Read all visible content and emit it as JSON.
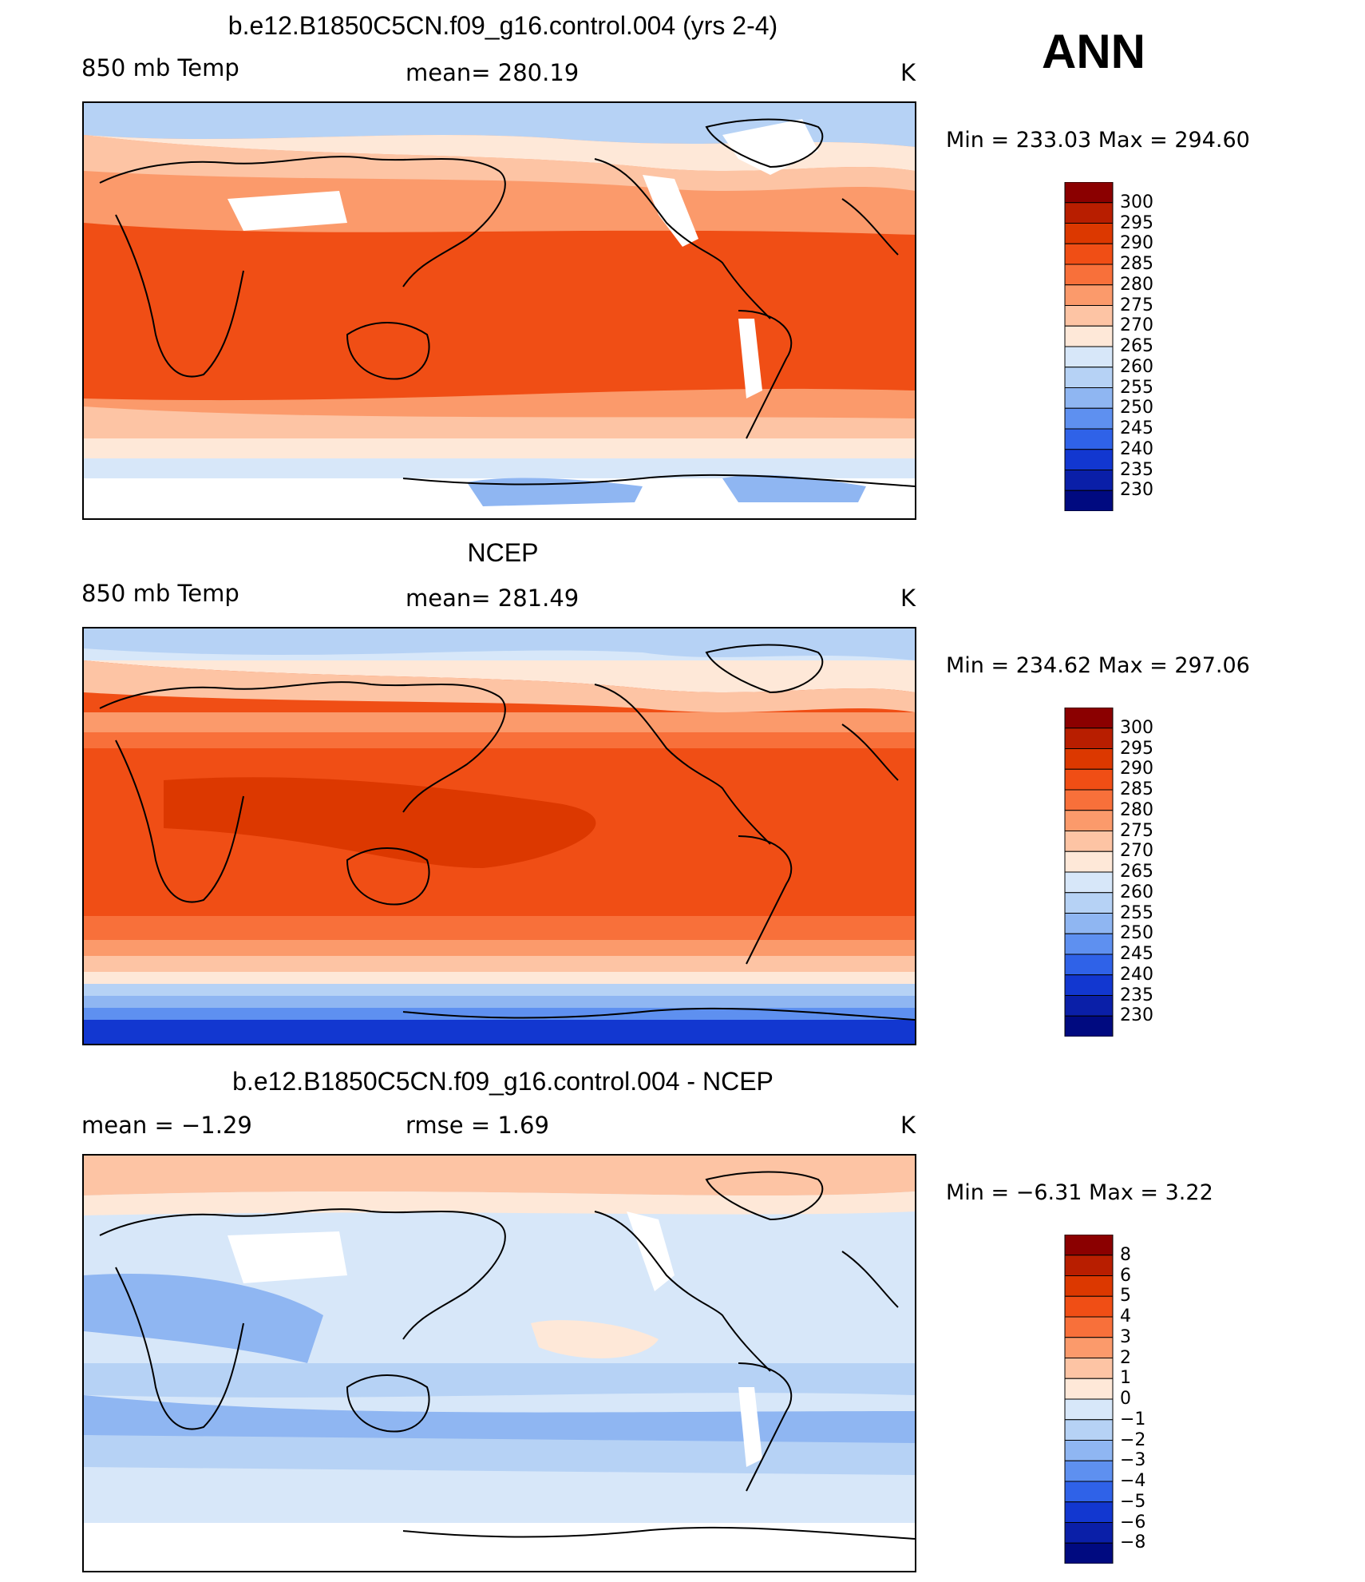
{
  "season": "ANN",
  "panels": [
    {
      "title": "b.e12.B1850C5CN.f09_g16.control.004 (yrs 2-4)",
      "variable": "850 mb Temp",
      "stat": "mean=  280.19",
      "units": "K",
      "minmax": "Min  =  233.03  Max  =  294.60"
    },
    {
      "title": "NCEP",
      "variable": "850 mb Temp",
      "stat": "mean=  281.49",
      "units": "K",
      "minmax": "Min  =  234.62  Max  =  297.06"
    },
    {
      "title": "b.e12.B1850C5CN.f09_g16.control.004 - NCEP",
      "variable": "mean  =    −1.29",
      "stat": "rmse  =     1.69",
      "units": "K",
      "minmax": "Min  =    −6.31  Max  =     3.22"
    }
  ],
  "colorbars": {
    "temp": {
      "labels": [
        "300",
        "295",
        "290",
        "285",
        "280",
        "275",
        "270",
        "265",
        "260",
        "255",
        "250",
        "245",
        "240",
        "235",
        "230"
      ],
      "colors": [
        "#8b0000",
        "#b81e00",
        "#dc3800",
        "#f04e15",
        "#f8703a",
        "#fb9a6b",
        "#fdc4a4",
        "#fee8d8",
        "#d7e7f9",
        "#b6d2f5",
        "#8fb6f2",
        "#5e90f0",
        "#2f62e8",
        "#1237d0",
        "#0a1fa8",
        "#000a80"
      ]
    },
    "diff": {
      "labels": [
        "8",
        "6",
        "5",
        "4",
        "3",
        "2",
        "1",
        "0",
        "−1",
        "−2",
        "−3",
        "−4",
        "−5",
        "−6",
        "−8"
      ],
      "colors": [
        "#8b0000",
        "#b81e00",
        "#dc3800",
        "#f04e15",
        "#f8703a",
        "#fb9a6b",
        "#fdc4a4",
        "#fee8d8",
        "#d7e7f9",
        "#b6d2f5",
        "#8fb6f2",
        "#5e90f0",
        "#2f62e8",
        "#1237d0",
        "#0a1fa8",
        "#000a80"
      ]
    }
  }
}
